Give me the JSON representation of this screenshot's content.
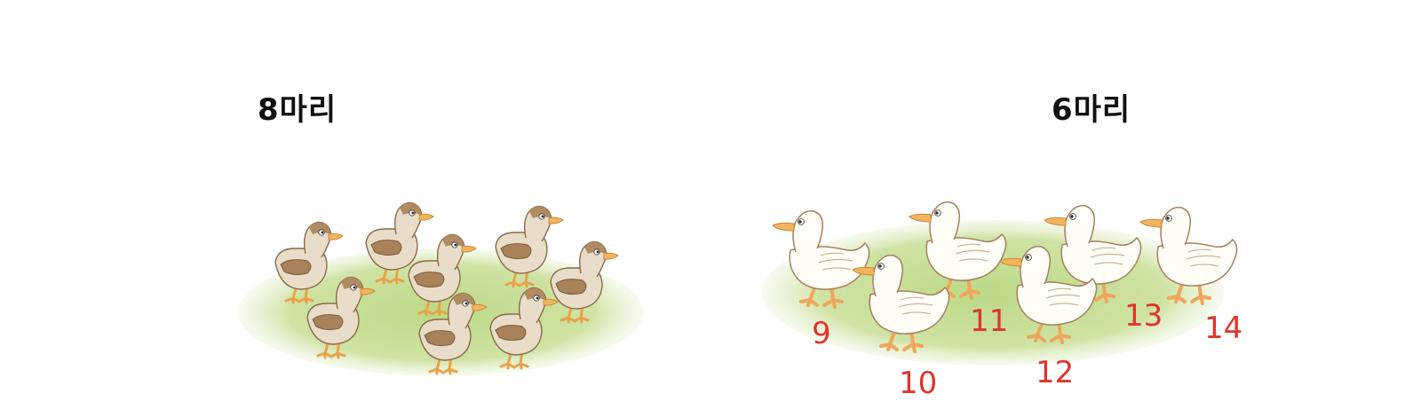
{
  "left_group": {
    "label": "8마리",
    "duck_color": "brown",
    "duck_count": 8
  },
  "right_group": {
    "label": "6마리",
    "duck_color": "white",
    "duck_count": 6,
    "counting_numbers": [
      "9",
      "10",
      "11",
      "12",
      "13",
      "14"
    ]
  },
  "colors": {
    "grass": "#c6dd95",
    "number": "#e0342a",
    "brown_body": "#e8ddc9",
    "brown_wing": "#a9825a",
    "white_body": "#fffdf6",
    "beak": "#f4b45e"
  }
}
